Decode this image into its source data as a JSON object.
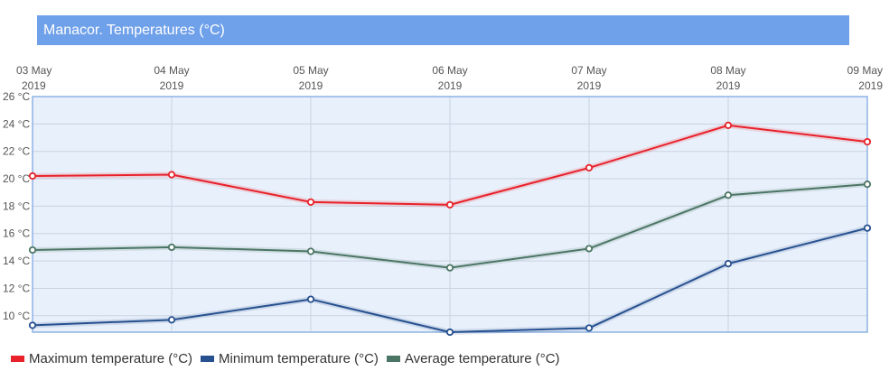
{
  "title": "Manacor. Temperatures (°C)",
  "chart_data": {
    "type": "line",
    "title": "Manacor. Temperatures (°C)",
    "categories": [
      [
        "03 May",
        "2019"
      ],
      [
        "04 May",
        "2019"
      ],
      [
        "05 May",
        "2019"
      ],
      [
        "06 May",
        "2019"
      ],
      [
        "07 May",
        "2019"
      ],
      [
        "08 May",
        "2019"
      ],
      [
        "09 May",
        "2019"
      ]
    ],
    "ylim": [
      8.8,
      26
    ],
    "yticks": [
      10,
      12,
      14,
      16,
      18,
      20,
      22,
      24,
      26
    ],
    "ytick_labels": [
      "10 °C",
      "12 °C",
      "14 °C",
      "16 °C",
      "18 °C",
      "20 °C",
      "22 °C",
      "24 °C",
      "26 °C"
    ],
    "grid": true,
    "legend_position": "bottom-left",
    "series": [
      {
        "name": "Maximum temperature (°C)",
        "color": "#e8212a",
        "values": [
          20.2,
          20.3,
          18.3,
          18.1,
          20.8,
          23.9,
          22.7
        ]
      },
      {
        "name": "Minimum temperature (°C)",
        "color": "#27508f",
        "values": [
          9.3,
          9.7,
          11.2,
          8.8,
          9.1,
          13.8,
          16.4
        ]
      },
      {
        "name": "Average temperature (°C)",
        "color": "#4b7564",
        "values": [
          14.8,
          15.0,
          14.7,
          13.5,
          14.9,
          18.8,
          19.6
        ]
      }
    ]
  }
}
